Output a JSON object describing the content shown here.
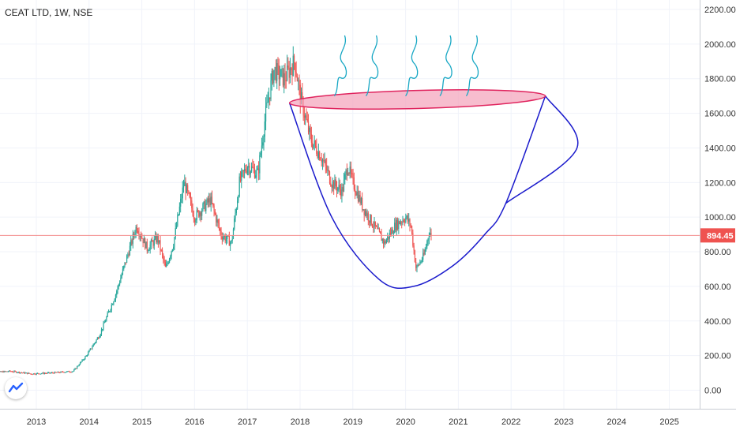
{
  "chart_data": {
    "type": "candlestick",
    "title": "CEAT LTD, 1W, NSE",
    "last_price": 894.45,
    "last_price_label": "894.45",
    "ylim": [
      -100,
      2260
    ],
    "xlim": [
      2012.1,
      2026.2
    ],
    "y_ticks": [
      0,
      200,
      400,
      600,
      800,
      1000,
      1200,
      1400,
      1600,
      1800,
      2000,
      2200
    ],
    "y_tick_labels": [
      "0.00",
      "200.00",
      "400.00",
      "600.00",
      "800.00",
      "1000.00",
      "1200.00",
      "1400.00",
      "1600.00",
      "1800.00",
      "2000.00",
      "2200.00"
    ],
    "x_ticks": [
      2013,
      2014,
      2015,
      2016,
      2017,
      2018,
      2019,
      2020,
      2021,
      2022,
      2023,
      2024,
      2025
    ],
    "x_tick_labels": [
      "2013",
      "2014",
      "2015",
      "2016",
      "2017",
      "2018",
      "2019",
      "2020",
      "2021",
      "2022",
      "2023",
      "2024",
      "2025"
    ],
    "grid": true,
    "colors": {
      "up": "#26a69a",
      "down": "#ef5350",
      "grid": "#f0f3fa",
      "price_line": "#f28b8b",
      "price_tag": "#ef5350",
      "cup": "#1a1acc",
      "rim_fill": "#f4a7bd",
      "rim_stroke": "#e0245e",
      "steam": "#17a7c4"
    },
    "price_path": [
      [
        2012.1,
        100
      ],
      [
        2012.5,
        110
      ],
      [
        2012.9,
        95
      ],
      [
        2013.3,
        100
      ],
      [
        2013.7,
        110
      ],
      [
        2013.95,
        200
      ],
      [
        2014.2,
        320
      ],
      [
        2014.5,
        550
      ],
      [
        2014.75,
        800
      ],
      [
        2014.9,
        950
      ],
      [
        2015.1,
        820
      ],
      [
        2015.3,
        880
      ],
      [
        2015.45,
        700
      ],
      [
        2015.6,
        850
      ],
      [
        2015.8,
        1200
      ],
      [
        2016.0,
        1000
      ],
      [
        2016.3,
        1100
      ],
      [
        2016.5,
        900
      ],
      [
        2016.7,
        850
      ],
      [
        2016.85,
        1200
      ],
      [
        2017.0,
        1300
      ],
      [
        2017.2,
        1250
      ],
      [
        2017.35,
        1600
      ],
      [
        2017.5,
        1850
      ],
      [
        2017.7,
        1800
      ],
      [
        2017.9,
        1900
      ],
      [
        2018.0,
        1700
      ],
      [
        2018.2,
        1450
      ],
      [
        2018.4,
        1350
      ],
      [
        2018.6,
        1200
      ],
      [
        2018.8,
        1150
      ],
      [
        2018.9,
        1300
      ],
      [
        2019.0,
        1200
      ],
      [
        2019.2,
        1050
      ],
      [
        2019.4,
        950
      ],
      [
        2019.6,
        850
      ],
      [
        2019.8,
        950
      ],
      [
        2020.0,
        1000
      ],
      [
        2020.1,
        950
      ],
      [
        2020.2,
        700
      ],
      [
        2020.35,
        780
      ],
      [
        2020.45,
        920
      ],
      [
        2020.5,
        894
      ]
    ],
    "annotations": {
      "cup_curve": [
        [
          2017.8,
          1660
        ],
        [
          2018.6,
          1000
        ],
        [
          2019.5,
          640
        ],
        [
          2020.15,
          600
        ],
        [
          2020.9,
          720
        ],
        [
          2021.5,
          900
        ],
        [
          2021.9,
          1080
        ],
        [
          2022.65,
          1700
        ]
      ],
      "handle_curve": [
        [
          2022.65,
          1700
        ],
        [
          2023.25,
          1400
        ],
        [
          2021.9,
          1080
        ]
      ],
      "rim_ellipse": {
        "x_start": 2017.8,
        "x_end": 2022.65,
        "y_left": 1660,
        "y_right": 1700,
        "half_height": 52
      },
      "steam_x": [
        2018.8,
        2019.4,
        2020.15,
        2020.8,
        2021.3
      ]
    }
  }
}
